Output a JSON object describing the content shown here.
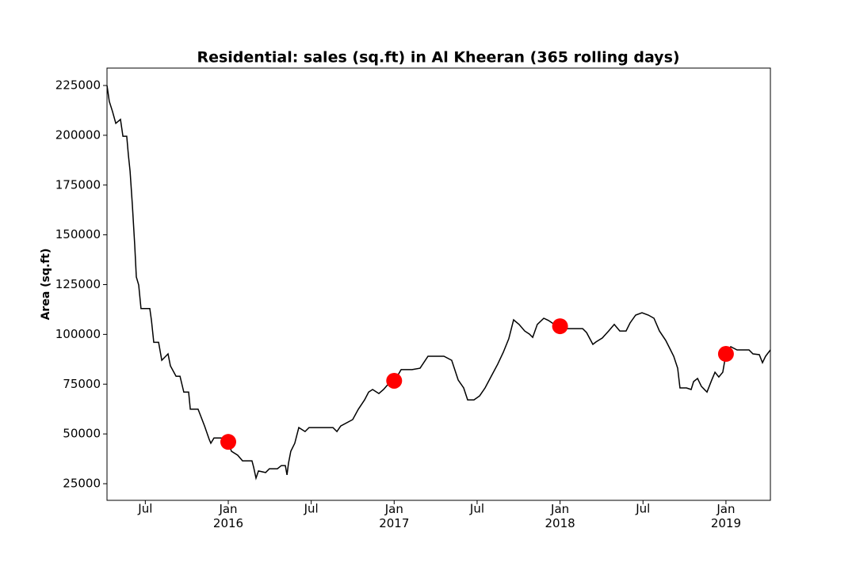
{
  "chart_data": {
    "type": "line",
    "title": "Residential: sales (sq.ft) in Al Kheeran (365 rolling days)",
    "y_label": "Area (sq.ft)",
    "color": "#000000",
    "x": [
      2015.269,
      2015.283,
      2015.302,
      2015.322,
      2015.35,
      2015.365,
      2015.388,
      2015.398,
      2015.408,
      2015.422,
      2015.436,
      2015.446,
      2015.46,
      2015.474,
      2015.527,
      2015.537,
      2015.551,
      2015.58,
      2015.599,
      2015.637,
      2015.651,
      2015.685,
      2015.709,
      2015.732,
      2015.761,
      2015.771,
      2015.818,
      2015.857,
      2015.885,
      2015.895,
      2015.914,
      2015.962,
      2016.0,
      2016.019,
      2016.057,
      2016.086,
      2016.143,
      2016.153,
      2016.167,
      2016.182,
      2016.225,
      2016.248,
      2016.296,
      2016.32,
      2016.344,
      2016.354,
      2016.363,
      2016.377,
      2016.401,
      2016.425,
      2016.463,
      2016.487,
      2016.631,
      2016.655,
      2016.678,
      2016.75,
      2016.784,
      2016.822,
      2016.846,
      2016.87,
      2016.908,
      2016.936,
      2016.965,
      2017.003,
      2017.042,
      2017.108,
      2017.156,
      2017.204,
      2017.252,
      2017.3,
      2017.347,
      2017.386,
      2017.419,
      2017.443,
      2017.481,
      2017.515,
      2017.548,
      2017.586,
      2017.624,
      2017.658,
      2017.691,
      2017.72,
      2017.753,
      2017.787,
      2017.816,
      2017.835,
      2017.863,
      2017.902,
      2017.93,
      2017.968,
      2018.002,
      2018.035,
      2018.136,
      2018.16,
      2018.198,
      2018.217,
      2018.255,
      2018.293,
      2018.327,
      2018.36,
      2018.398,
      2018.422,
      2018.456,
      2018.494,
      2018.532,
      2018.566,
      2018.599,
      2018.637,
      2018.661,
      2018.685,
      2018.709,
      2018.723,
      2018.762,
      2018.79,
      2018.805,
      2018.829,
      2018.852,
      2018.886,
      2018.914,
      2018.934,
      2018.957,
      2018.981,
      2019.0,
      2019.029,
      2019.067,
      2019.139,
      2019.163,
      2019.201,
      2019.22,
      2019.239,
      2019.268
    ],
    "values": [
      225000,
      217000,
      212000,
      206000,
      208000,
      199500,
      199500,
      190000,
      182000,
      165000,
      144700,
      128800,
      124800,
      113000,
      113000,
      107000,
      96000,
      96000,
      87000,
      90200,
      84200,
      79000,
      79000,
      71000,
      71000,
      62400,
      62400,
      54000,
      47300,
      45300,
      48000,
      48000,
      46000,
      41300,
      39300,
      36500,
      36500,
      33300,
      27800,
      31400,
      30600,
      32500,
      32500,
      34100,
      34100,
      29400,
      35300,
      41300,
      45300,
      53200,
      51200,
      53200,
      53200,
      51200,
      54000,
      57200,
      62400,
      67100,
      71000,
      72300,
      70300,
      72300,
      75100,
      76700,
      82300,
      82300,
      83000,
      89000,
      89000,
      89000,
      87000,
      77100,
      73100,
      67100,
      67100,
      69100,
      73100,
      79100,
      85000,
      91000,
      97800,
      107300,
      105000,
      101700,
      100100,
      98500,
      105000,
      108100,
      107000,
      104900,
      104100,
      102900,
      102900,
      100900,
      95000,
      96200,
      98200,
      101700,
      105000,
      101700,
      101700,
      105700,
      109700,
      110900,
      109700,
      108100,
      101700,
      97000,
      93000,
      89000,
      83000,
      73100,
      73100,
      72300,
      76300,
      77900,
      73900,
      71000,
      77000,
      81000,
      78600,
      81000,
      90200,
      93800,
      92200,
      92200,
      90200,
      89800,
      85800,
      89000,
      92200
    ],
    "markers": {
      "color": "#ff0000",
      "x": [
        2016,
        2017,
        2018,
        2019
      ],
      "values": [
        46000,
        76700,
        104100,
        90200
      ]
    },
    "xlim": [
      2015.269,
      2019.268
    ],
    "xticks": [
      {
        "value": 2015.5,
        "label": "Jul"
      },
      {
        "value": 2016,
        "label": "Jan\n2016"
      },
      {
        "value": 2016.5,
        "label": "Jul"
      },
      {
        "value": 2017,
        "label": "Jan\n2017"
      },
      {
        "value": 2017.5,
        "label": "Jul"
      },
      {
        "value": 2018,
        "label": "Jan\n2018"
      },
      {
        "value": 2018.5,
        "label": "Jul"
      },
      {
        "value": 2019,
        "label": "Jan\n2019"
      }
    ],
    "ylim": [
      16650,
      233750
    ],
    "yticks": [
      25000,
      50000,
      75000,
      100000,
      125000,
      150000,
      175000,
      200000,
      225000
    ],
    "grid": false
  }
}
